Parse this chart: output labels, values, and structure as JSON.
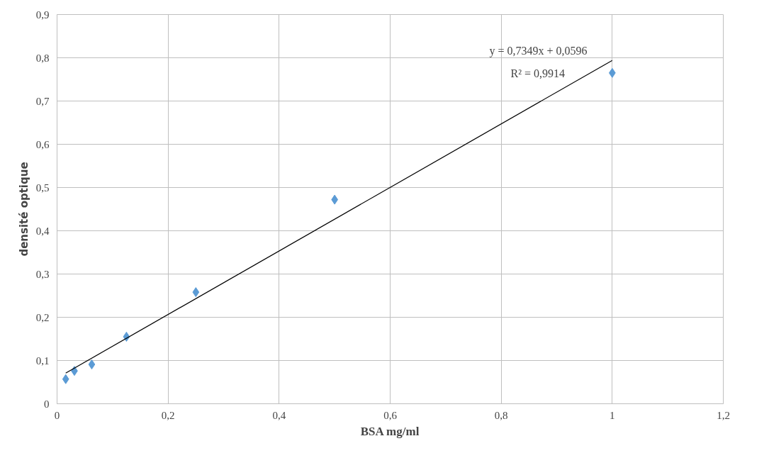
{
  "chart_data": {
    "type": "scatter",
    "xlabel": "BSA mg/ml",
    "ylabel": "densité optique",
    "grid": true,
    "marker": "diamond",
    "xlim": [
      0,
      1.2
    ],
    "ylim": [
      0,
      0.9
    ],
    "xticks": [
      0,
      {
        "value": 0.2,
        "label": "0,2"
      },
      {
        "value": 0.4,
        "label": "0,4"
      },
      {
        "value": 0.6,
        "label": "0,6"
      },
      {
        "value": 0.8,
        "label": "0,8"
      },
      1,
      {
        "value": 1.2,
        "label": "1,2"
      }
    ],
    "yticks": [
      0,
      {
        "value": 0.1,
        "label": "0,1"
      },
      {
        "value": 0.2,
        "label": "0,2"
      },
      {
        "value": 0.3,
        "label": "0,3"
      },
      {
        "value": 0.4,
        "label": "0,4"
      },
      {
        "value": 0.5,
        "label": "0,5"
      },
      {
        "value": 0.6,
        "label": "0,6"
      },
      {
        "value": 0.7,
        "label": "0,7"
      },
      {
        "value": 0.8,
        "label": "0,8"
      },
      {
        "value": 0.9,
        "label": "0,9"
      }
    ],
    "series": [
      {
        "color": "#5b9bd5",
        "x": [
          0.0156,
          0.03125,
          0.0625,
          0.125,
          0.25,
          0.5,
          1
        ],
        "values": [
          0.057,
          0.076,
          0.091,
          0.155,
          0.258,
          0.472,
          0.765
        ]
      },
      {
        "type": "line",
        "marker": "none",
        "color": "#000000",
        "x": [
          0.0156,
          1
        ],
        "values": [
          0.071,
          0.794
        ]
      }
    ],
    "annotations": [
      "y = 0,7349x + 0,0596",
      "R² = 0,9914"
    ]
  }
}
